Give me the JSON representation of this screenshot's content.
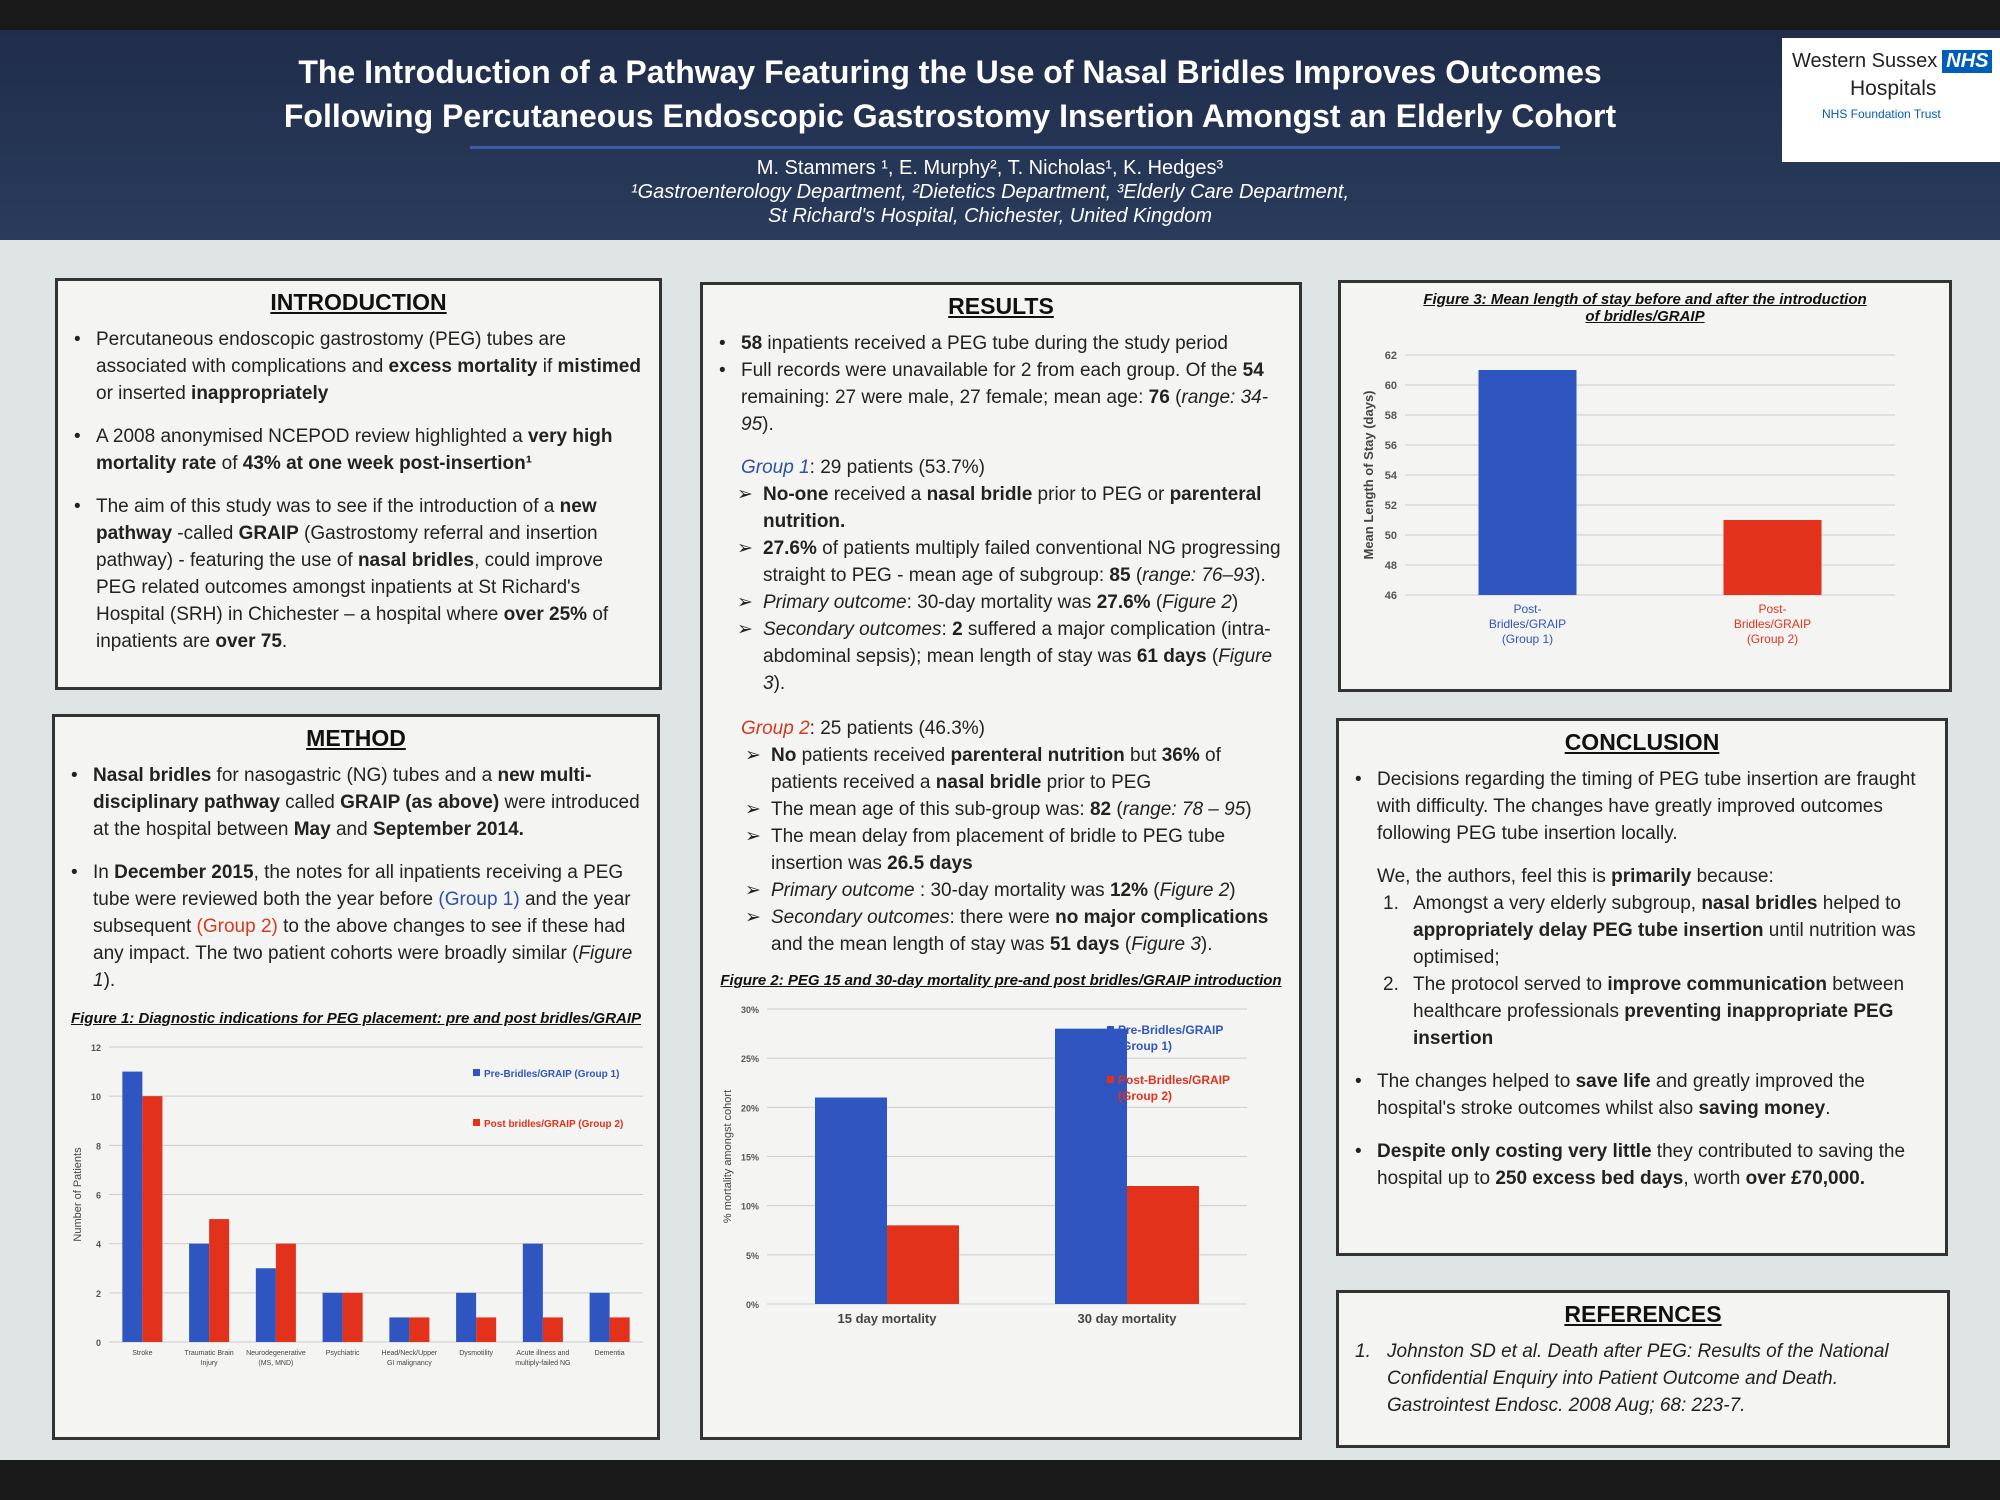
{
  "header": {
    "title_line1": "The Introduction of a Pathway Featuring the Use of Nasal Bridles Improves Outcomes",
    "title_line2": "Following Percutaneous Endoscopic Gastrostomy Insertion Amongst an Elderly Cohort",
    "authors": "M. Stammers ¹, E. Murphy², T. Nicholas¹, K. Hedges³",
    "affiliations1": "¹Gastroenterology Department, ²Dietetics Department, ³Elderly Care Department,",
    "affiliations2": "St Richard's Hospital, Chichester, United Kingdom"
  },
  "logo": {
    "line1": "Western Sussex",
    "nhs": "NHS",
    "line2": "Hospitals",
    "line3": "NHS Foundation Trust"
  },
  "introduction": {
    "heading": "INTRODUCTION",
    "paras": [
      [
        [
          "Percutaneous endoscopic gastrostomy (PEG) tubes are associated with complications and ",
          ""
        ],
        [
          "excess mortality",
          "b"
        ],
        [
          " if ",
          ""
        ],
        [
          "mistimed",
          "b"
        ],
        [
          " or inserted ",
          ""
        ],
        [
          "inappropriately",
          "b"
        ]
      ],
      [
        [
          "A 2008 anonymised NCEPOD review highlighted a ",
          ""
        ],
        [
          "very high mortality rate",
          "b"
        ],
        [
          " of ",
          ""
        ],
        [
          "43% at one week post-insertion¹",
          "b"
        ]
      ],
      [
        [
          "The aim of this study was to see if the introduction of a ",
          ""
        ],
        [
          "new pathway",
          "b"
        ],
        [
          " -called ",
          ""
        ],
        [
          "GRAIP",
          "b"
        ],
        [
          " (Gastrostomy referral and insertion pathway) - featuring the use of ",
          ""
        ],
        [
          "nasal bridles",
          "b"
        ],
        [
          ", could improve PEG related outcomes amongst inpatients at St Richard's Hospital (SRH) in Chichester – a hospital where ",
          ""
        ],
        [
          "over 25%",
          "b"
        ],
        [
          " of inpatients are ",
          ""
        ],
        [
          "over 75",
          "b"
        ],
        [
          ".",
          ""
        ]
      ]
    ]
  },
  "method": {
    "heading": "METHOD",
    "paras": [
      [
        [
          "Nasal bridles",
          "b"
        ],
        [
          " for nasogastric (NG) tubes and a ",
          ""
        ],
        [
          "new multi-disciplinary pathway",
          "b"
        ],
        [
          " called ",
          ""
        ],
        [
          "GRAIP (as above)",
          "b"
        ],
        [
          " were introduced at the hospital between ",
          ""
        ],
        [
          "May",
          "b"
        ],
        [
          " and ",
          ""
        ],
        [
          "September 2014.",
          "b"
        ]
      ],
      [
        [
          "In ",
          ""
        ],
        [
          "December 2015",
          "b"
        ],
        [
          ", the notes for all inpatients receiving a PEG tube were reviewed both the year before ",
          ""
        ],
        [
          "(Group 1)",
          "blue"
        ],
        [
          " and the year subsequent ",
          ""
        ],
        [
          "(Group 2)",
          "red"
        ],
        [
          " to the above changes to see if these had any impact. The two patient cohorts were broadly similar (",
          ""
        ],
        [
          "Figure 1",
          "i"
        ],
        [
          ").",
          ""
        ]
      ]
    ]
  },
  "results": {
    "heading": "RESULTS",
    "paras": [
      [
        [
          "58",
          "b"
        ],
        [
          " inpatients received a PEG tube during the study period",
          ""
        ]
      ],
      [
        [
          "Full records were unavailable for 2 from each group. Of the ",
          ""
        ],
        [
          "54",
          "b"
        ],
        [
          " remaining: 27 were male, 27 female; mean age: ",
          ""
        ],
        [
          "76",
          "b"
        ],
        [
          " (",
          ""
        ],
        [
          "range: 34-95",
          "i"
        ],
        [
          ").",
          ""
        ]
      ]
    ],
    "group1": {
      "label": "Group 1",
      "rest": ": 29 patients (53.7%)",
      "items": [
        [
          [
            "No-one",
            "b"
          ],
          [
            " received a ",
            ""
          ],
          [
            "nasal bridle",
            "b"
          ],
          [
            " prior to PEG or ",
            ""
          ],
          [
            "parenteral nutrition.",
            "b"
          ]
        ],
        [
          [
            "27.6%",
            "b"
          ],
          [
            " of patients multiply failed conventional NG progressing straight to PEG - mean age of subgroup: ",
            ""
          ],
          [
            "85",
            "b"
          ],
          [
            " (",
            ""
          ],
          [
            "range: 76–93",
            "i"
          ],
          [
            ").",
            ""
          ]
        ],
        [
          [
            "Primary outcome",
            "i"
          ],
          [
            ": 30-day mortality was ",
            ""
          ],
          [
            "27.6%",
            "b"
          ],
          [
            " (",
            ""
          ],
          [
            "Figure 2",
            "i"
          ],
          [
            ")",
            ""
          ]
        ],
        [
          [
            "Secondary outcomes",
            "i"
          ],
          [
            ": ",
            ""
          ],
          [
            "2",
            "b"
          ],
          [
            " suffered a major complication (intra-abdominal sepsis); mean length of stay was ",
            ""
          ],
          [
            "61 days",
            "b"
          ],
          [
            " (",
            ""
          ],
          [
            "Figure 3",
            "i"
          ],
          [
            ").",
            ""
          ]
        ]
      ]
    },
    "group2": {
      "label": "Group 2",
      "rest": ": 25 patients (46.3%)",
      "items": [
        [
          [
            "No",
            "b"
          ],
          [
            " patients received ",
            ""
          ],
          [
            "parenteral nutrition",
            "b"
          ],
          [
            " but ",
            ""
          ],
          [
            "36%",
            "b"
          ],
          [
            " of patients received a ",
            ""
          ],
          [
            "nasal bridle",
            "b"
          ],
          [
            " prior to PEG",
            ""
          ]
        ],
        [
          [
            "The mean age of this sub-group was: ",
            ""
          ],
          [
            "82",
            "b"
          ],
          [
            " (",
            ""
          ],
          [
            "range: 78 – 95",
            "i"
          ],
          [
            ")",
            ""
          ]
        ],
        [
          [
            "The mean delay from placement of bridle to PEG tube insertion was ",
            ""
          ],
          [
            "26.5 days",
            "b"
          ]
        ],
        [
          [
            "Primary outcome",
            "i"
          ],
          [
            " : 30-day mortality was ",
            ""
          ],
          [
            "12%",
            "b"
          ],
          [
            " (",
            ""
          ],
          [
            "Figure 2",
            "i"
          ],
          [
            ")",
            ""
          ]
        ],
        [
          [
            "Secondary outcomes",
            "i"
          ],
          [
            ": there were ",
            ""
          ],
          [
            "no major complications",
            "b"
          ],
          [
            " and the mean length of stay was ",
            ""
          ],
          [
            "51 days",
            "b"
          ],
          [
            " (",
            ""
          ],
          [
            "Figure 3",
            "i"
          ],
          [
            ").",
            ""
          ]
        ]
      ]
    }
  },
  "conclusion": {
    "heading": "CONCLUSION",
    "p1": [
      [
        "Decisions regarding the timing of PEG tube insertion are fraught with difficulty. The changes have greatly improved outcomes following PEG tube insertion locally.",
        ""
      ]
    ],
    "p2": [
      [
        "We, the authors, feel this is ",
        ""
      ],
      [
        "primarily",
        "b"
      ],
      [
        " because:",
        ""
      ]
    ],
    "list": [
      [
        [
          "Amongst a very elderly subgroup, ",
          ""
        ],
        [
          "nasal bridles",
          "b"
        ],
        [
          " helped to ",
          ""
        ],
        [
          "appropriately delay PEG tube insertion",
          "b"
        ],
        [
          " until nutrition was optimised;",
          ""
        ]
      ],
      [
        [
          "The protocol served to ",
          ""
        ],
        [
          "improve communication",
          "b"
        ],
        [
          " between healthcare professionals ",
          ""
        ],
        [
          "preventing inappropriate PEG insertion",
          "b"
        ]
      ]
    ],
    "p3": [
      [
        "The changes helped to ",
        ""
      ],
      [
        "save life",
        "b"
      ],
      [
        " and greatly improved the hospital's stroke outcomes whilst also ",
        ""
      ],
      [
        "saving money",
        "b"
      ],
      [
        ".",
        ""
      ]
    ],
    "p4": [
      [
        "Despite only costing very little",
        "b"
      ],
      [
        " they contributed to saving the hospital up to ",
        ""
      ],
      [
        "250 excess bed days",
        "b"
      ],
      [
        ", worth ",
        ""
      ],
      [
        "over £70,000.",
        "b"
      ]
    ]
  },
  "references": {
    "heading": "REFERENCES",
    "items": [
      [
        [
          "Johnston SD et al. Death after PEG: Results of the National Confidential Enquiry into Patient Outcome and Death. Gastrointest Endosc. 2008 Aug; 68: 223-7.",
          "i"
        ]
      ]
    ]
  },
  "colors": {
    "group1": "#2f55c0",
    "group2": "#e2321c"
  },
  "chart_data": [
    {
      "id": "fig1",
      "type": "bar",
      "title": "Figure 1: Diagnostic indications for PEG placement: pre and post bridles/GRAIP",
      "ylabel": "Number of Patients",
      "ylim": [
        0,
        12
      ],
      "yticks": [
        "0",
        "2",
        "4",
        "6",
        "8",
        "10",
        "12"
      ],
      "grid": true,
      "legend": "top-right",
      "categories": [
        [
          "Stroke"
        ],
        [
          "Traumatic Brain",
          "Injury"
        ],
        [
          "Neurodegenerative",
          "(MS, MND)"
        ],
        [
          "Psychiatric"
        ],
        [
          "Head/Neck/Upper",
          "GI malignancy"
        ],
        [
          "Dysmotility"
        ],
        [
          "Acute illness and",
          "multiply-failed NG"
        ],
        [
          "Dementia"
        ]
      ],
      "series": [
        {
          "name": "Pre-Bridles/GRAIP (Group 1)",
          "values": [
            11,
            4,
            3,
            2,
            1,
            2,
            4,
            2
          ]
        },
        {
          "name": "Post bridles/GRAIP (Group 2)",
          "values": [
            10,
            5,
            4,
            2,
            1,
            1,
            1,
            1
          ]
        }
      ]
    },
    {
      "id": "fig2",
      "type": "bar",
      "title": "Figure 2: PEG 15 and 30-day mortality pre-and post bridles/GRAIP introduction",
      "ylabel": "% mortality amongst cohort",
      "ylim": [
        0,
        30
      ],
      "yticks": [
        "0%",
        "5%",
        "10%",
        "15%",
        "20%",
        "25%",
        "30%"
      ],
      "grid": true,
      "legend": "top-right",
      "categories": [
        [
          "15 day mortality"
        ],
        [
          "30 day mortality"
        ]
      ],
      "series": [
        {
          "name": "Pre-Bridles/GRAIP (Group 1)",
          "values": [
            21,
            28
          ]
        },
        {
          "name": "Post-Bridles/GRAIP (Group 2)",
          "values": [
            8,
            12
          ]
        }
      ]
    },
    {
      "id": "fig3",
      "type": "bar",
      "title": "Figure 3:  Mean length of stay before and after the introduction of bridles/GRAIP",
      "ylabel": "Mean Length of Stay (days)",
      "ylim": [
        46,
        62
      ],
      "yticks": [
        "46",
        "48",
        "50",
        "52",
        "54",
        "56",
        "58",
        "60",
        "62"
      ],
      "grid": true,
      "legend": "none",
      "categories": [
        [
          "Post-",
          "Bridles/GRAIP",
          "(Group 1)"
        ],
        [
          "Post-",
          "Bridles/GRAIP",
          "(Group 2)"
        ]
      ],
      "series": [
        {
          "name": "Mean length of stay",
          "values": [
            61,
            51
          ]
        }
      ]
    }
  ]
}
